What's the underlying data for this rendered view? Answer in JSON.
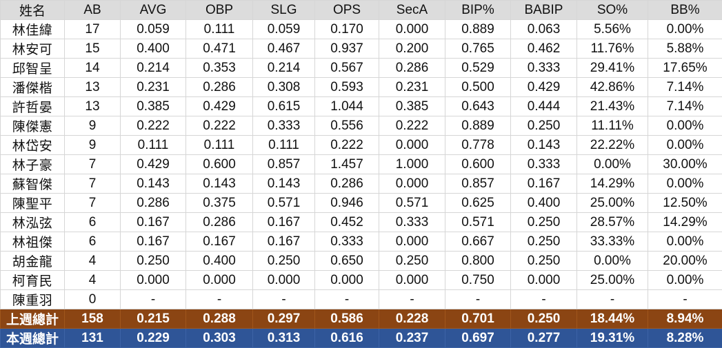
{
  "colors": {
    "header_bg": "#dcdcdc",
    "last_week_bg": "#8b4513",
    "this_week_bg": "#2f5597",
    "total_text": "#ffffff"
  },
  "headers": [
    "姓名",
    "AB",
    "AVG",
    "OBP",
    "SLG",
    "OPS",
    "SecA",
    "BIP%",
    "BABIP",
    "SO%",
    "BB%"
  ],
  "rows": [
    [
      "林佳緯",
      "17",
      "0.059",
      "0.111",
      "0.059",
      "0.170",
      "0.000",
      "0.889",
      "0.063",
      "5.56%",
      "0.00%"
    ],
    [
      "林安可",
      "15",
      "0.400",
      "0.471",
      "0.467",
      "0.937",
      "0.200",
      "0.765",
      "0.462",
      "11.76%",
      "5.88%"
    ],
    [
      "邱智呈",
      "14",
      "0.214",
      "0.353",
      "0.214",
      "0.567",
      "0.286",
      "0.529",
      "0.333",
      "29.41%",
      "17.65%"
    ],
    [
      "潘傑楷",
      "13",
      "0.231",
      "0.286",
      "0.308",
      "0.593",
      "0.231",
      "0.500",
      "0.429",
      "42.86%",
      "7.14%"
    ],
    [
      "許哲晏",
      "13",
      "0.385",
      "0.429",
      "0.615",
      "1.044",
      "0.385",
      "0.643",
      "0.444",
      "21.43%",
      "7.14%"
    ],
    [
      "陳傑憲",
      "9",
      "0.222",
      "0.222",
      "0.333",
      "0.556",
      "0.222",
      "0.889",
      "0.250",
      "11.11%",
      "0.00%"
    ],
    [
      "林岱安",
      "9",
      "0.111",
      "0.111",
      "0.111",
      "0.222",
      "0.000",
      "0.778",
      "0.143",
      "22.22%",
      "0.00%"
    ],
    [
      "林子豪",
      "7",
      "0.429",
      "0.600",
      "0.857",
      "1.457",
      "1.000",
      "0.600",
      "0.333",
      "0.00%",
      "30.00%"
    ],
    [
      "蘇智傑",
      "7",
      "0.143",
      "0.143",
      "0.143",
      "0.286",
      "0.000",
      "0.857",
      "0.167",
      "14.29%",
      "0.00%"
    ],
    [
      "陳聖平",
      "7",
      "0.286",
      "0.375",
      "0.571",
      "0.946",
      "0.571",
      "0.625",
      "0.400",
      "25.00%",
      "12.50%"
    ],
    [
      "林泓弦",
      "6",
      "0.167",
      "0.286",
      "0.167",
      "0.452",
      "0.333",
      "0.571",
      "0.250",
      "28.57%",
      "14.29%"
    ],
    [
      "林祖傑",
      "6",
      "0.167",
      "0.167",
      "0.167",
      "0.333",
      "0.000",
      "0.667",
      "0.250",
      "33.33%",
      "0.00%"
    ],
    [
      "胡金龍",
      "4",
      "0.250",
      "0.400",
      "0.250",
      "0.650",
      "0.250",
      "0.800",
      "0.250",
      "0.00%",
      "20.00%"
    ],
    [
      "柯育民",
      "4",
      "0.000",
      "0.000",
      "0.000",
      "0.000",
      "0.000",
      "0.750",
      "0.000",
      "25.00%",
      "0.00%"
    ],
    [
      "陳重羽",
      "0",
      "-",
      "-",
      "-",
      "-",
      "-",
      "-",
      "-",
      "-",
      "-"
    ]
  ],
  "totals": {
    "last_week": [
      "上週總計",
      "158",
      "0.215",
      "0.288",
      "0.297",
      "0.586",
      "0.228",
      "0.701",
      "0.250",
      "18.44%",
      "8.94%"
    ],
    "this_week": [
      "本週總計",
      "131",
      "0.229",
      "0.303",
      "0.313",
      "0.616",
      "0.237",
      "0.697",
      "0.277",
      "19.31%",
      "8.28%"
    ]
  }
}
